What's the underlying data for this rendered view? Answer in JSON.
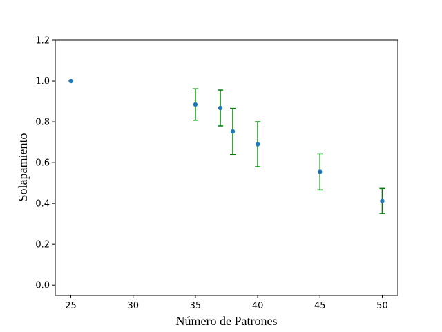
{
  "chart_data": {
    "type": "scatter",
    "title": "",
    "xlabel": "Número de Patrones",
    "ylabel": "Solapamiento",
    "xlim": [
      23.75,
      51.25
    ],
    "ylim": [
      -0.05,
      1.2
    ],
    "x_ticks": [
      25,
      30,
      35,
      40,
      45,
      50
    ],
    "y_ticks": [
      0.0,
      0.2,
      0.4,
      0.6,
      0.8,
      1.0,
      1.2
    ],
    "x_tick_labels": [
      "25",
      "30",
      "35",
      "40",
      "45",
      "50"
    ],
    "y_tick_labels": [
      "0.0",
      "0.2",
      "0.4",
      "0.6",
      "0.8",
      "1.0",
      "1.2"
    ],
    "grid": false,
    "series": [
      {
        "x": [
          25,
          35,
          37,
          38,
          40,
          45,
          50
        ],
        "y": [
          1.0,
          0.885,
          0.868,
          0.753,
          0.69,
          0.555,
          0.412
        ],
        "err_low": [
          0.0,
          0.077,
          0.088,
          0.113,
          0.11,
          0.088,
          0.062
        ],
        "err_high": [
          0.0,
          0.077,
          0.088,
          0.113,
          0.11,
          0.088,
          0.062
        ],
        "color": "#1f77b4",
        "errorbar_color": "#008000"
      }
    ]
  }
}
